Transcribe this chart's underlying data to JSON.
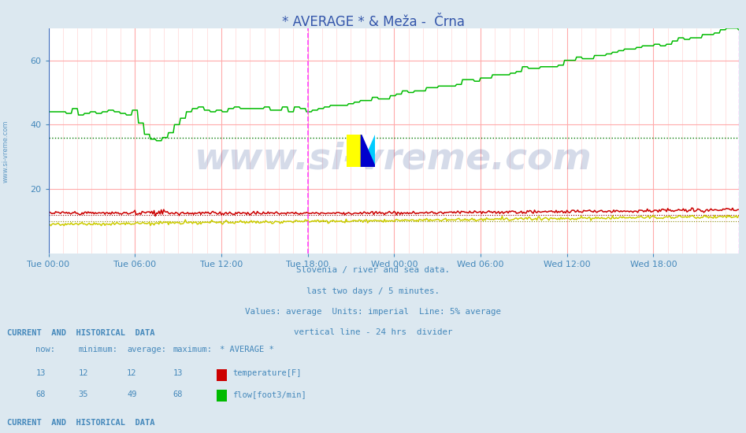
{
  "title": "* AVERAGE * & Meža -  Črna",
  "bg_color": "#dce8f0",
  "plot_bg_color": "#ffffff",
  "xlim_days": 2,
  "ylim": [
    0,
    70
  ],
  "yticks": [
    20,
    40,
    60
  ],
  "tick_label_color": "#4488bb",
  "title_color": "#3355aa",
  "subtitle_lines": [
    "Slovenia / river and sea data.",
    "last two days / 5 minutes.",
    "Values: average  Units: imperial  Line: 5% average",
    "vertical line - 24 hrs  divider"
  ],
  "watermark": "www.si-vreme.com",
  "watermark_color": "#1a3a8a",
  "watermark_alpha": 0.18,
  "avg_flow_color": "#00bb00",
  "avg_temp_color": "#cc0000",
  "meza_temp_color": "#cccc00",
  "meza_flow_color": "#ff00ff",
  "avg_flow_dotted": "#007700",
  "avg_temp_dotted": "#880000",
  "meza_temp_dotted": "#888800",
  "n_points": 576,
  "avg_flow_avg_val": 36,
  "avg_temp_avg_val": 12,
  "meza_temp_avg_val": 10,
  "vline_idx": 216,
  "legend_color": "#4488bb"
}
